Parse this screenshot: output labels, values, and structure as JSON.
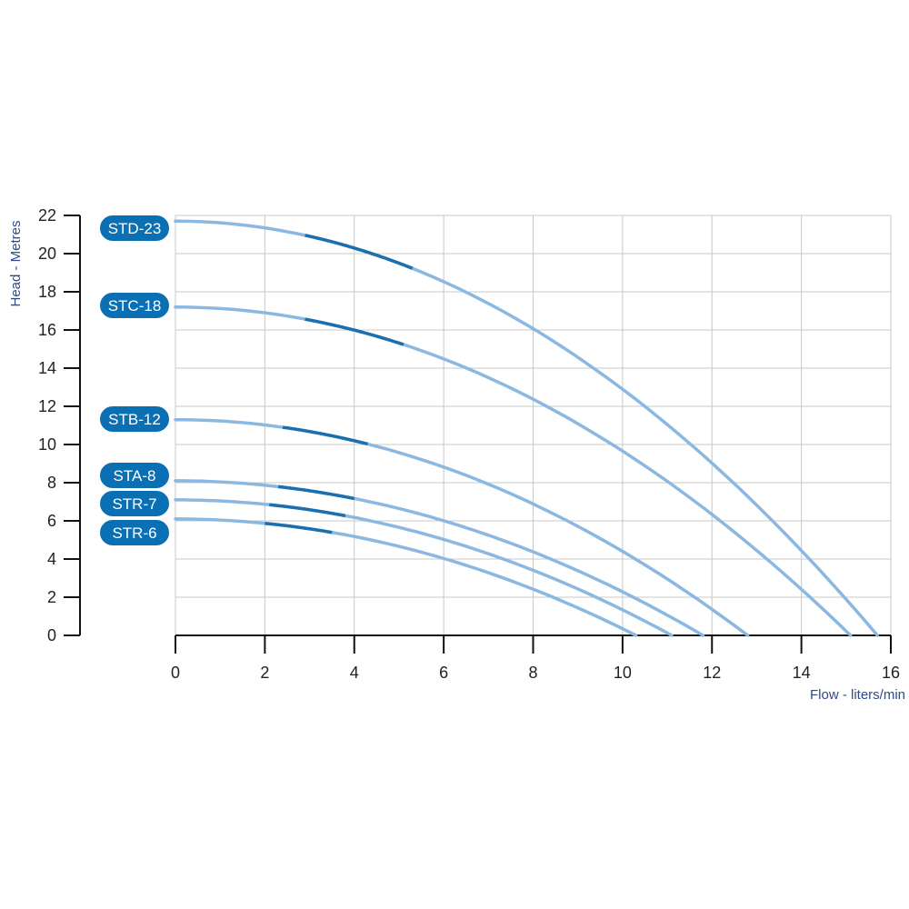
{
  "chart_data": {
    "type": "line",
    "xlabel": "Flow - liters/min",
    "ylabel": "Head - Metres",
    "xlim": [
      0,
      16
    ],
    "ylim": [
      0,
      22
    ],
    "x_ticks": [
      0,
      2,
      4,
      6,
      8,
      10,
      12,
      14,
      16
    ],
    "y_ticks": [
      0,
      2,
      4,
      6,
      8,
      10,
      12,
      14,
      16,
      18,
      20,
      22
    ],
    "grid": true,
    "colors": {
      "curve": "#8bb8e0",
      "highlight": "#1a6fae",
      "badge": "#0b6fb3",
      "axis_title": "#2f4a8c",
      "grid": "#c8c8c8"
    },
    "series": [
      {
        "name": "STD-23",
        "shutoff_head": 21.7,
        "max_flow": 15.7,
        "highlight": [
          2.9,
          5.3
        ]
      },
      {
        "name": "STC-18",
        "shutoff_head": 17.2,
        "max_flow": 15.1,
        "highlight": [
          2.9,
          5.1
        ]
      },
      {
        "name": "STB-12",
        "shutoff_head": 11.3,
        "max_flow": 12.8,
        "highlight": [
          2.4,
          4.3
        ]
      },
      {
        "name": "STA-8",
        "shutoff_head": 8.1,
        "max_flow": 11.8,
        "highlight": [
          2.3,
          4.0
        ]
      },
      {
        "name": "STR-7",
        "shutoff_head": 7.1,
        "max_flow": 11.1,
        "highlight": [
          2.1,
          3.8
        ]
      },
      {
        "name": "STR-6",
        "shutoff_head": 6.1,
        "max_flow": 10.3,
        "highlight": [
          2.0,
          3.5
        ]
      }
    ]
  }
}
